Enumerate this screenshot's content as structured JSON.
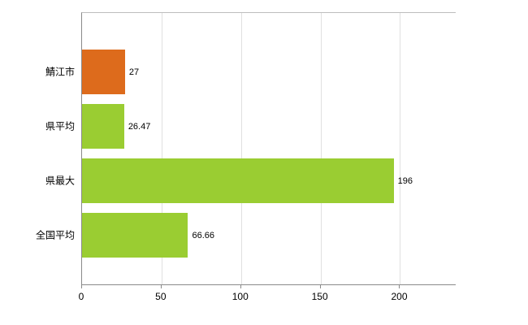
{
  "chart_data": {
    "type": "bar",
    "orientation": "horizontal",
    "title": "",
    "xlabel": "",
    "ylabel": "",
    "categories": [
      "鯖江市",
      "県平均",
      "県最大",
      "全国平均"
    ],
    "values": [
      27,
      26.47,
      196,
      66.66
    ],
    "value_labels": [
      "27",
      "26.47",
      "196",
      "66.66"
    ],
    "bar_colors": [
      "#dd6b1c",
      "#9acd32",
      "#9acd32",
      "#9acd32"
    ],
    "x_ticks": [
      0,
      50,
      100,
      150,
      200
    ],
    "x_tick_labels": [
      "0",
      "50",
      "100",
      "150",
      "200"
    ],
    "xlim": [
      0,
      235
    ],
    "grid": true,
    "legend": "none",
    "colors": {
      "axis": "#8a8a8a",
      "gridline": "#e0e0e0",
      "background": "#ffffff",
      "text": "#000000",
      "highlight_bar": "#dd6b1c",
      "default_bar": "#9acd32"
    }
  }
}
